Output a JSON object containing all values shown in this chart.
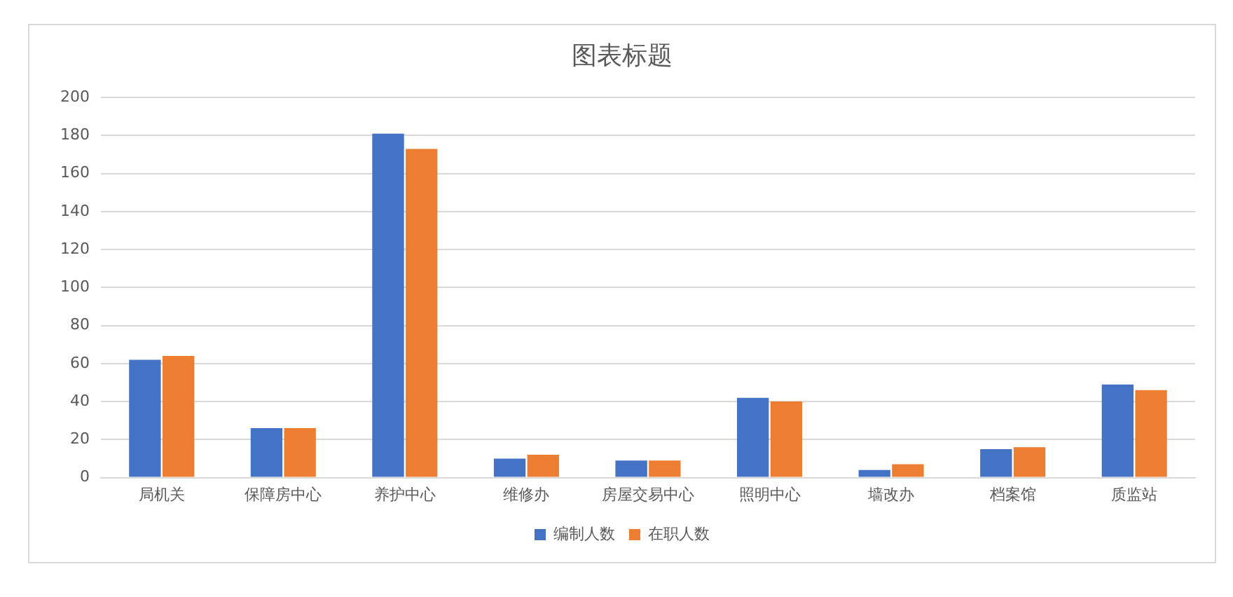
{
  "chart_data": {
    "type": "bar",
    "title": "图表标题",
    "categories": [
      "局机关",
      "保障房中心",
      "养护中心",
      "维修办",
      "房屋交易中心",
      "照明中心",
      "墙改办",
      "档案馆",
      "质监站"
    ],
    "series": [
      {
        "name": "编制人数",
        "color": "#4472c4",
        "values": [
          62,
          26,
          181,
          10,
          9,
          42,
          4,
          15,
          49
        ]
      },
      {
        "name": "在职人数",
        "color": "#ed7d31",
        "values": [
          64,
          26,
          173,
          12,
          9,
          40,
          7,
          16,
          46
        ]
      }
    ],
    "ylim": [
      0,
      200
    ],
    "yticks": [
      0,
      20,
      40,
      60,
      80,
      100,
      120,
      140,
      160,
      180,
      200
    ],
    "grid": "y",
    "legend": "bottom"
  }
}
